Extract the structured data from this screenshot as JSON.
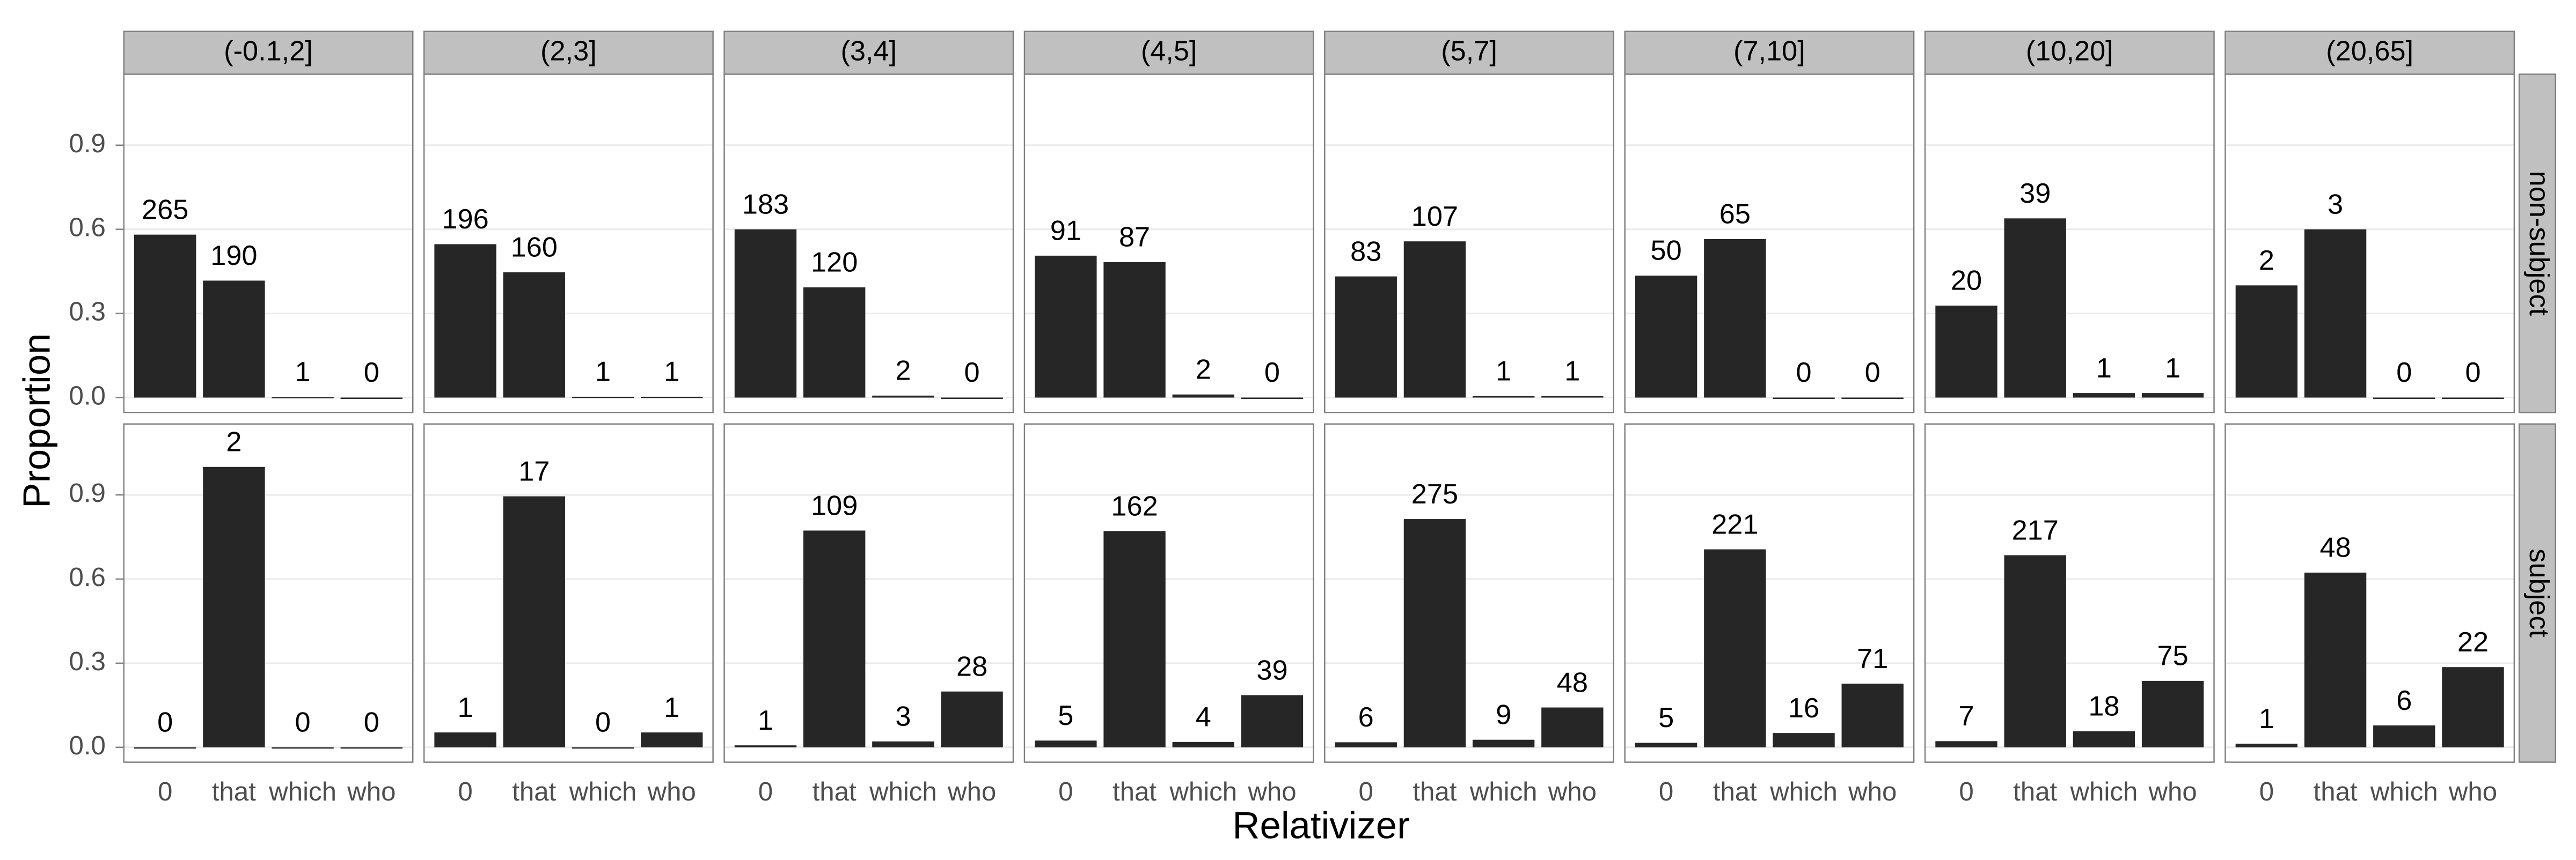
{
  "chart_data": {
    "type": "bar",
    "x_label": "Relativizer",
    "y_label": "Proportion",
    "categories": [
      "0",
      "that",
      "which",
      "who"
    ],
    "color": "#262626",
    "grid": true,
    "ylim": [
      -0.053,
      1.153
    ],
    "yticks": [
      {
        "value": 0,
        "label": "0.0"
      },
      0.3,
      0.6,
      0.9
    ],
    "facet_columns": [
      "(-0.1,2]",
      "(2,3]",
      "(3,4]",
      "(4,5]",
      "(5,7]",
      "(7,10]",
      "(10,20]",
      "(20,65]"
    ],
    "facet_rows": [
      {
        "label": "non-subject",
        "panels": [
          {
            "values": [
              0.581,
              0.417,
              0.002,
              0
            ],
            "counts": [
              265,
              190,
              1,
              0
            ]
          },
          {
            "values": [
              0.547,
              0.447,
              0.003,
              0.003
            ],
            "counts": [
              196,
              160,
              1,
              1
            ]
          },
          {
            "values": [
              0.6,
              0.393,
              0.007,
              0
            ],
            "counts": [
              183,
              120,
              2,
              0
            ]
          },
          {
            "values": [
              0.506,
              0.483,
              0.011,
              0
            ],
            "counts": [
              91,
              87,
              2,
              0
            ]
          },
          {
            "values": [
              0.432,
              0.557,
              0.005,
              0.005
            ],
            "counts": [
              83,
              107,
              1,
              1
            ]
          },
          {
            "values": [
              0.435,
              0.565,
              0,
              0
            ],
            "counts": [
              50,
              65,
              0,
              0
            ]
          },
          {
            "values": [
              0.328,
              0.639,
              0.016,
              0.016
            ],
            "counts": [
              20,
              39,
              1,
              1
            ]
          },
          {
            "values": [
              0.4,
              0.6,
              0,
              0
            ],
            "counts": [
              2,
              3,
              0,
              0
            ]
          }
        ]
      },
      {
        "label": "subject",
        "panels": [
          {
            "values": [
              0,
              1,
              0,
              0
            ],
            "counts": [
              0,
              2,
              0,
              0
            ]
          },
          {
            "values": [
              0.053,
              0.895,
              0,
              0.053
            ],
            "counts": [
              1,
              17,
              0,
              1
            ]
          },
          {
            "values": [
              0.007,
              0.773,
              0.021,
              0.199
            ],
            "counts": [
              1,
              109,
              3,
              28
            ]
          },
          {
            "values": [
              0.024,
              0.771,
              0.019,
              0.186
            ],
            "counts": [
              5,
              162,
              4,
              39
            ]
          },
          {
            "values": [
              0.018,
              0.814,
              0.027,
              0.142
            ],
            "counts": [
              6,
              275,
              9,
              48
            ]
          },
          {
            "values": [
              0.016,
              0.706,
              0.051,
              0.227
            ],
            "counts": [
              5,
              221,
              16,
              71
            ]
          },
          {
            "values": [
              0.022,
              0.685,
              0.057,
              0.237
            ],
            "counts": [
              7,
              217,
              18,
              75
            ]
          },
          {
            "values": [
              0.013,
              0.623,
              0.078,
              0.286
            ],
            "counts": [
              1,
              48,
              6,
              22
            ]
          }
        ]
      }
    ]
  }
}
